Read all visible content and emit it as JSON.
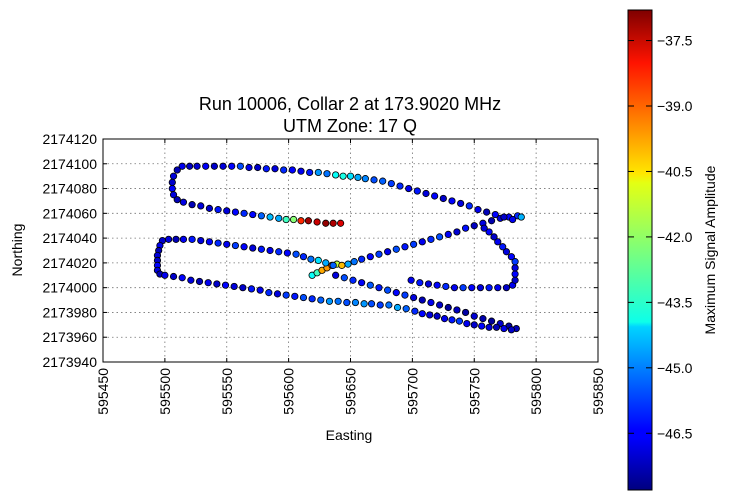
{
  "chart_data": {
    "type": "scatter",
    "title": "Run 10006, Collar 2 at 173.9020 MHz",
    "subtitle": "UTM Zone: 17 Q",
    "xlabel": "Easting",
    "ylabel": "Northing",
    "xlim": [
      595450,
      595850
    ],
    "ylim": [
      2173940,
      2174120
    ],
    "xticks": [
      "595450",
      "595500",
      "595550",
      "595600",
      "595650",
      "595700",
      "595750",
      "595800",
      "595850"
    ],
    "yticks": [
      "2174120",
      "2174100",
      "2174080",
      "2174060",
      "2174040",
      "2174020",
      "2174000",
      "2173980",
      "2173960",
      "2173940"
    ],
    "grid": true,
    "colorbar": {
      "label": "Maximum Signal Amplitude",
      "range": [
        -47.8,
        -36.8
      ],
      "ticks": [
        "−37.5",
        "−39.0",
        "−40.5",
        "−42.0",
        "−43.5",
        "−45.0",
        "−46.5"
      ],
      "tick_values": [
        -37.5,
        -39.0,
        -40.5,
        -42.0,
        -43.5,
        -45.0,
        -46.5
      ],
      "colormap": "jet"
    },
    "points": [
      [
        595784,
        2173967,
        -47.2
      ],
      [
        595778,
        2173969,
        -47.4
      ],
      [
        595771,
        2173971,
        -47.0
      ],
      [
        595764,
        2173973,
        -47.5
      ],
      [
        595757,
        2173975,
        -47.3
      ],
      [
        595750,
        2173977,
        -46.9
      ],
      [
        595743,
        2173980,
        -47.4
      ],
      [
        595736,
        2173982,
        -47.1
      ],
      [
        595729,
        2173984,
        -47.5
      ],
      [
        595722,
        2173986,
        -47.0
      ],
      [
        595715,
        2173988,
        -46.6
      ],
      [
        595708,
        2173990,
        -47.2
      ],
      [
        595701,
        2173992,
        -46.8
      ],
      [
        595694,
        2173994,
        -45.8
      ],
      [
        595687,
        2173996,
        -46.4
      ],
      [
        595680,
        2173998,
        -45.6
      ],
      [
        595673,
        2174000,
        -46.2
      ],
      [
        595666,
        2174002,
        -45.5
      ],
      [
        595659,
        2174004,
        -46.5
      ],
      [
        595652,
        2174006,
        -46.0
      ],
      [
        595645,
        2174008,
        -45.6
      ],
      [
        595638,
        2174010,
        -46.8
      ],
      [
        595619,
        2174010,
        -43.6
      ],
      [
        595623,
        2174012,
        -43.0
      ],
      [
        595627,
        2174014,
        -40.0
      ],
      [
        595631,
        2174016,
        -39.8
      ],
      [
        595635,
        2174018,
        -39.0
      ],
      [
        595639,
        2174019,
        -41.6
      ],
      [
        595643,
        2174018,
        -40.2
      ],
      [
        595648,
        2174019,
        -44.6
      ],
      [
        595653,
        2174021,
        -45.2
      ],
      [
        595659,
        2174023,
        -46.0
      ],
      [
        595666,
        2174025,
        -46.4
      ],
      [
        595673,
        2174027,
        -45.8
      ],
      [
        595680,
        2174029,
        -46.6
      ],
      [
        595687,
        2174031,
        -45.6
      ],
      [
        595694,
        2174033,
        -46.2
      ],
      [
        595701,
        2174035,
        -45.8
      ],
      [
        595708,
        2174037,
        -46.6
      ],
      [
        595715,
        2174039,
        -46.0
      ],
      [
        595722,
        2174041,
        -45.6
      ],
      [
        595729,
        2174043,
        -46.5
      ],
      [
        595736,
        2174045,
        -46.9
      ],
      [
        595743,
        2174048,
        -46.3
      ],
      [
        595750,
        2174050,
        -47.1
      ],
      [
        595757,
        2174052,
        -46.7
      ],
      [
        595764,
        2174054,
        -47.3
      ],
      [
        595771,
        2174056,
        -46.8
      ],
      [
        595778,
        2174057,
        -46.4
      ],
      [
        595785,
        2174058,
        -46.0
      ],
      [
        595788,
        2174057,
        -44.5
      ],
      [
        595781,
        2174055,
        -46.6
      ],
      [
        595774,
        2174057,
        -47.0
      ],
      [
        595767,
        2174059,
        -46.4
      ],
      [
        595760,
        2174061,
        -47.2
      ],
      [
        595753,
        2174063,
        -46.6
      ],
      [
        595746,
        2174066,
        -46.0
      ],
      [
        595739,
        2174068,
        -46.8
      ],
      [
        595732,
        2174070,
        -46.4
      ],
      [
        595725,
        2174072,
        -47.0
      ],
      [
        595718,
        2174074,
        -46.4
      ],
      [
        595711,
        2174076,
        -46.8
      ],
      [
        595704,
        2174078,
        -46.2
      ],
      [
        595697,
        2174080,
        -46.6
      ],
      [
        595690,
        2174082,
        -46.0
      ],
      [
        595683,
        2174084,
        -45.8
      ],
      [
        595676,
        2174086,
        -45.4
      ],
      [
        595669,
        2174087,
        -45.6
      ],
      [
        595662,
        2174088,
        -45.0
      ],
      [
        595656,
        2174089,
        -44.6
      ],
      [
        595650,
        2174090,
        -44.0
      ],
      [
        595644,
        2174090,
        -43.4
      ],
      [
        595638,
        2174091,
        -43.6
      ],
      [
        595631,
        2174092,
        -45.2
      ],
      [
        595624,
        2174093,
        -44.8
      ],
      [
        595617,
        2174093,
        -46.2
      ],
      [
        595610,
        2174094,
        -46.6
      ],
      [
        595603,
        2174095,
        -46.4
      ],
      [
        595596,
        2174095,
        -46.0
      ],
      [
        595589,
        2174096,
        -46.8
      ],
      [
        595582,
        2174096,
        -46.2
      ],
      [
        595575,
        2174097,
        -47.0
      ],
      [
        595568,
        2174097,
        -46.6
      ],
      [
        595561,
        2174098,
        -45.6
      ],
      [
        595554,
        2174098,
        -46.4
      ],
      [
        595547,
        2174098,
        -46.8
      ],
      [
        595540,
        2174098,
        -47.0
      ],
      [
        595533,
        2174098,
        -46.5
      ],
      [
        595526,
        2174098,
        -46.9
      ],
      [
        595520,
        2174098,
        -47.1
      ],
      [
        595514,
        2174098,
        -46.6
      ],
      [
        595510,
        2174095,
        -47.2
      ],
      [
        595507,
        2174090,
        -46.8
      ],
      [
        595506,
        2174085,
        -47.0
      ],
      [
        595506,
        2174080,
        -46.4
      ],
      [
        595507,
        2174075,
        -46.8
      ],
      [
        595510,
        2174071,
        -47.2
      ],
      [
        595515,
        2174069,
        -46.7
      ],
      [
        595522,
        2174067,
        -47.2
      ],
      [
        595529,
        2174066,
        -46.8
      ],
      [
        595536,
        2174064,
        -47.0
      ],
      [
        595543,
        2174063,
        -46.2
      ],
      [
        595550,
        2174062,
        -46.8
      ],
      [
        595557,
        2174061,
        -46.4
      ],
      [
        595564,
        2174060,
        -46.0
      ],
      [
        595571,
        2174059,
        -46.4
      ],
      [
        595578,
        2174058,
        -45.4
      ],
      [
        595585,
        2174057,
        -44.4
      ],
      [
        595592,
        2174056,
        -44.6
      ],
      [
        595598,
        2174055,
        -43.0
      ],
      [
        595604,
        2174055,
        -42.2
      ],
      [
        595610,
        2174054,
        -38.6
      ],
      [
        595616,
        2174054,
        -37.2
      ],
      [
        595623,
        2174053,
        -37.6
      ],
      [
        595630,
        2174052,
        -37.0
      ],
      [
        595636,
        2174052,
        -37.3
      ],
      [
        595642,
        2174052,
        -37.8
      ],
      [
        595509,
        2174039,
        -47.2
      ],
      [
        595503,
        2174039,
        -46.8
      ],
      [
        595498,
        2174038,
        -47.0
      ],
      [
        595496,
        2174034,
        -46.6
      ],
      [
        595495,
        2174030,
        -47.2
      ],
      [
        595494,
        2174026,
        -46.8
      ],
      [
        595494,
        2174022,
        -47.0
      ],
      [
        595494,
        2174018,
        -46.4
      ],
      [
        595494,
        2174014,
        -46.8
      ],
      [
        595496,
        2174011,
        -47.2
      ],
      [
        595500,
        2174010,
        -46.6
      ],
      [
        595507,
        2174009,
        -47.0
      ],
      [
        595514,
        2174008,
        -46.4
      ],
      [
        595521,
        2174006,
        -46.8
      ],
      [
        595528,
        2174005,
        -47.2
      ],
      [
        595535,
        2174004,
        -46.6
      ],
      [
        595542,
        2174003,
        -47.0
      ],
      [
        595549,
        2174002,
        -46.4
      ],
      [
        595556,
        2174001,
        -46.8
      ],
      [
        595563,
        2174000,
        -47.0
      ],
      [
        595570,
        2173999,
        -46.2
      ],
      [
        595577,
        2173998,
        -46.6
      ],
      [
        595584,
        2173996,
        -46.0
      ],
      [
        595591,
        2173995,
        -46.8
      ],
      [
        595598,
        2173994,
        -45.8
      ],
      [
        595605,
        2173993,
        -46.2
      ],
      [
        595612,
        2173992,
        -45.6
      ],
      [
        595619,
        2173991,
        -46.0
      ],
      [
        595626,
        2173990,
        -45.4
      ],
      [
        595633,
        2173989,
        -44.8
      ],
      [
        595640,
        2173989,
        -45.2
      ],
      [
        595647,
        2173988,
        -45.6
      ],
      [
        595654,
        2173988,
        -45.0
      ],
      [
        595661,
        2173987,
        -44.8
      ],
      [
        595667,
        2173987,
        -45.6
      ],
      [
        595674,
        2173986,
        -45.8
      ],
      [
        595681,
        2173986,
        -45.2
      ],
      [
        595688,
        2173984,
        -44.6
      ],
      [
        595695,
        2173983,
        -45.4
      ],
      [
        595702,
        2173981,
        -46.0
      ],
      [
        595708,
        2173979,
        -46.4
      ],
      [
        595714,
        2173978,
        -46.8
      ],
      [
        595720,
        2173977,
        -47.0
      ],
      [
        595726,
        2173975,
        -46.6
      ],
      [
        595732,
        2173974,
        -46.2
      ],
      [
        595738,
        2173973,
        -45.8
      ],
      [
        595744,
        2173971,
        -46.6
      ],
      [
        595750,
        2173970,
        -47.0
      ],
      [
        595756,
        2173969,
        -46.4
      ],
      [
        595762,
        2173968,
        -46.8
      ],
      [
        595768,
        2173968,
        -47.2
      ],
      [
        595774,
        2173967,
        -46.6
      ],
      [
        595780,
        2173966,
        -47.0
      ],
      [
        595515,
        2174039,
        -46.6
      ],
      [
        595522,
        2174039,
        -46.2
      ],
      [
        595529,
        2174038,
        -46.8
      ],
      [
        595536,
        2174037,
        -46.4
      ],
      [
        595543,
        2174036,
        -46.0
      ],
      [
        595550,
        2174035,
        -46.6
      ],
      [
        595557,
        2174034,
        -45.8
      ],
      [
        595564,
        2174033,
        -46.4
      ],
      [
        595571,
        2174032,
        -46.8
      ],
      [
        595578,
        2174031,
        -46.2
      ],
      [
        595585,
        2174030,
        -46.6
      ],
      [
        595592,
        2174029,
        -46.0
      ],
      [
        595599,
        2174028,
        -46.4
      ],
      [
        595606,
        2174027,
        -45.6
      ],
      [
        595612,
        2174025,
        -46.0
      ],
      [
        595618,
        2174023,
        -45.2
      ],
      [
        595624,
        2174022,
        -44.0
      ],
      [
        595630,
        2174020,
        -44.6
      ],
      [
        595636,
        2174018,
        -45.4
      ],
      [
        595699,
        2174006,
        -46.6
      ],
      [
        595706,
        2174004,
        -46.2
      ],
      [
        595713,
        2174003,
        -46.8
      ],
      [
        595720,
        2174002,
        -46.4
      ],
      [
        595727,
        2174001,
        -46.0
      ],
      [
        595734,
        2174000,
        -46.6
      ],
      [
        595741,
        2174000,
        -45.8
      ],
      [
        595748,
        2174000,
        -46.4
      ],
      [
        595755,
        2174000,
        -46.8
      ],
      [
        595762,
        2174000,
        -46.2
      ],
      [
        595769,
        2174000,
        -46.6
      ],
      [
        595776,
        2174000,
        -47.0
      ],
      [
        595781,
        2174002,
        -46.6
      ],
      [
        595783,
        2174006,
        -47.0
      ],
      [
        595783,
        2174011,
        -46.4
      ],
      [
        595783,
        2174016,
        -46.8
      ],
      [
        595783,
        2174021,
        -45.8
      ],
      [
        595780,
        2174025,
        -46.4
      ],
      [
        595776,
        2174029,
        -46.8
      ],
      [
        595773,
        2174033,
        -46.2
      ],
      [
        595769,
        2174037,
        -46.6
      ],
      [
        595766,
        2174041,
        -47.0
      ],
      [
        595762,
        2174045,
        -46.4
      ],
      [
        595758,
        2174048,
        -46.8
      ]
    ]
  }
}
